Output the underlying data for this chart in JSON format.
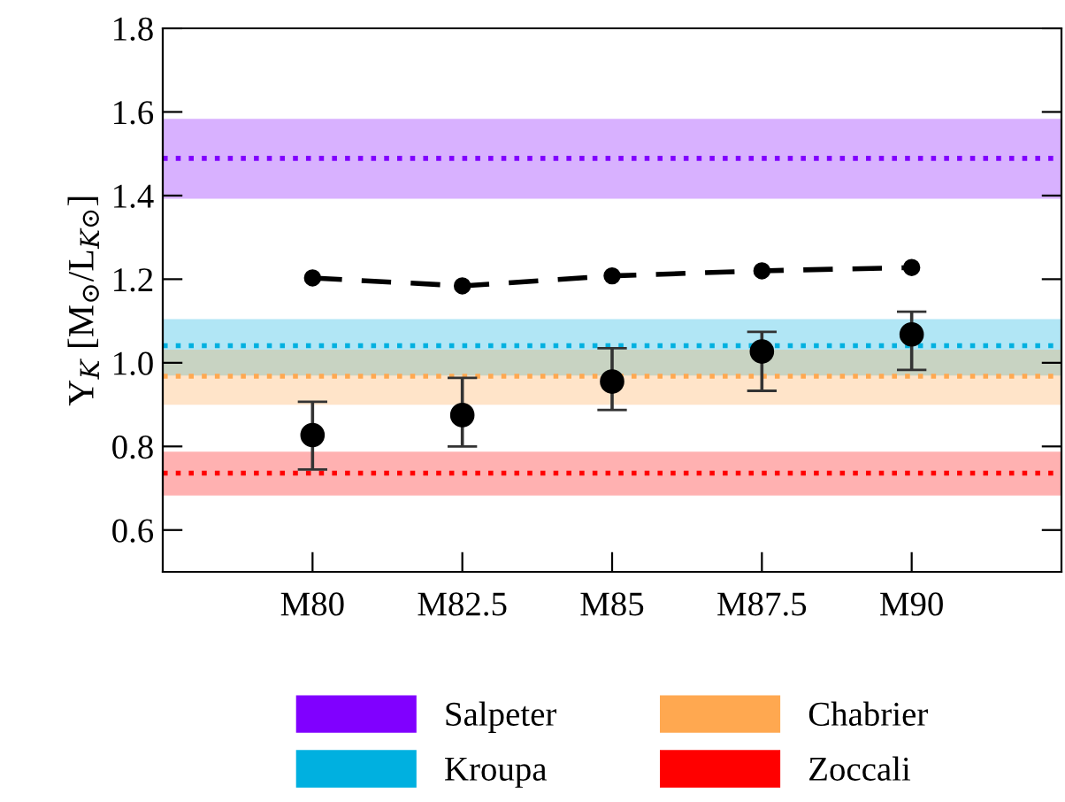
{
  "chart_data": {
    "type": "scatter",
    "ylabel": "Υ$_{K}$ [M$_{⊙}$/L$_{K⊙}$]",
    "categories": [
      "M80",
      "M82.5",
      "M85",
      "M87.5",
      "M90"
    ],
    "series": [
      {
        "type": "line",
        "color": "#000000",
        "line_style": "dashed",
        "marker": "circle",
        "values": [
          1.203,
          1.184,
          1.208,
          1.22,
          1.228
        ]
      },
      {
        "color": "#000000",
        "marker": "circle",
        "values": [
          0.827,
          0.875,
          0.955,
          1.027,
          1.068
        ],
        "errors": [
          [
            0.745,
            0.907
          ],
          [
            0.8,
            0.964
          ],
          [
            0.887,
            1.035
          ],
          [
            0.933,
            1.074
          ],
          [
            0.983,
            1.122
          ]
        ]
      }
    ],
    "bands": [
      {
        "axis": "y",
        "from": 1.397,
        "to": 1.579,
        "label": "Salpeter",
        "color": "#8000ff"
      },
      {
        "axis": "y",
        "from": 0.974,
        "to": 1.1,
        "label": "Kroupa",
        "color": "#00b0e0"
      },
      {
        "axis": "y",
        "from": 0.904,
        "to": 1.027,
        "label": "Chabrier",
        "color": "#ffa850"
      },
      {
        "axis": "y",
        "from": 0.687,
        "to": 0.783,
        "label": "Zoccali",
        "color": "#ff0000"
      }
    ],
    "ref_lines": [
      {
        "axis": "y",
        "value": 1.489,
        "color": "#8000ff",
        "line_style": "dotted"
      },
      {
        "axis": "y",
        "value": 1.041,
        "color": "#00b0e0",
        "line_style": "dotted"
      },
      {
        "axis": "y",
        "value": 0.968,
        "color": "#ffa850",
        "line_style": "dotted"
      },
      {
        "axis": "y",
        "value": 0.736,
        "color": "#ff0000",
        "line_style": "dotted"
      }
    ],
    "ylim": [
      0.5,
      1.8
    ],
    "yticks": [
      0.6,
      0.8,
      {
        "value": 1.0,
        "label": "1.0"
      },
      1.2,
      1.4,
      1.6,
      1.8
    ],
    "legend": "bottom",
    "grid": false
  }
}
